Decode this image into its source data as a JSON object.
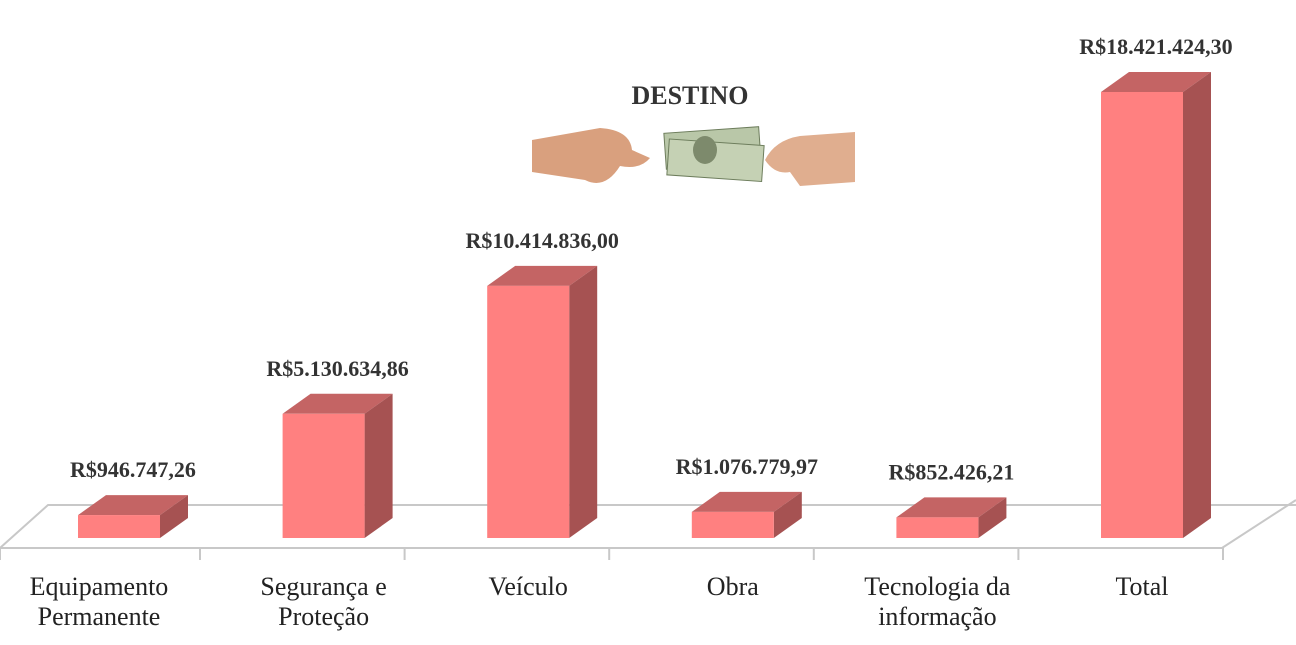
{
  "chart_data": {
    "type": "bar3d",
    "title": "DESTINO",
    "categories": [
      "Equipamento Permanente",
      "Segurança e Proteção",
      "Veículo",
      "Obra",
      "Tecnologia da informação",
      "Total"
    ],
    "values": [
      946747.26,
      5130634.86,
      10414836.0,
      1076779.97,
      852426.21,
      18421424.3
    ],
    "value_labels": [
      "R$946.747,26",
      "R$5.130.634,86",
      "R$10.414.836,00",
      "R$1.076.779,97",
      "R$852.426,21",
      "R$18.421.424,30"
    ],
    "color": "#ff8080"
  }
}
